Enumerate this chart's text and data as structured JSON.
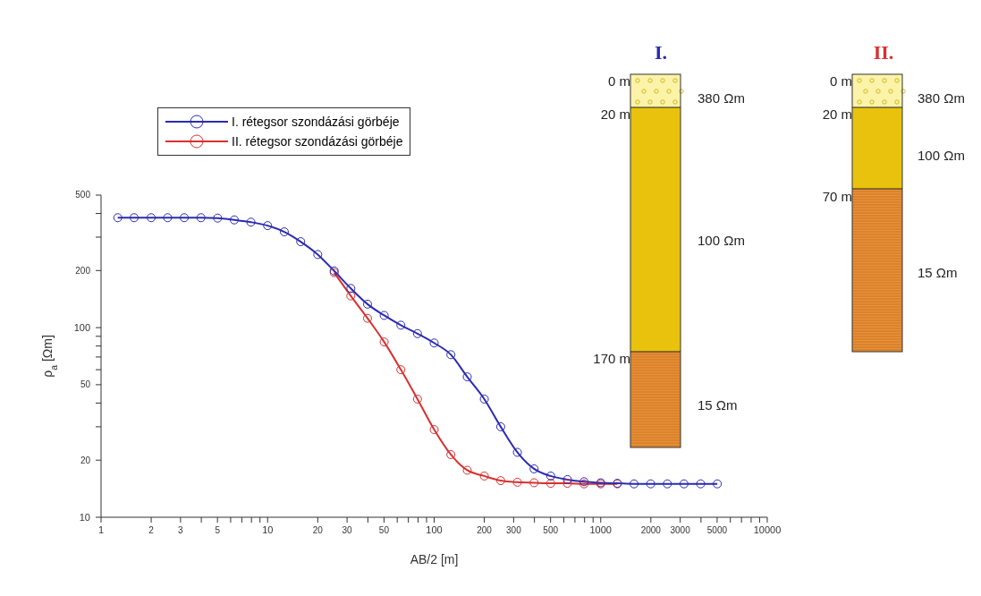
{
  "chart_data": {
    "type": "line",
    "xlabel": "AB/2 [m]",
    "ylabel": "ρ$_{a}$ [Ωm]",
    "log": "xy",
    "xlim": [
      1,
      10000
    ],
    "ylim": [
      10,
      500
    ],
    "xticks": [
      1,
      {
        "value": 2,
        "label": "2"
      },
      {
        "value": 3,
        "label": "3"
      },
      {
        "value": 4,
        "label": null
      },
      {
        "value": 5,
        "label": "5"
      },
      {
        "value": 6,
        "label": null
      },
      {
        "value": 7,
        "label": null
      },
      {
        "value": 8,
        "label": null
      },
      {
        "value": 9,
        "label": null
      },
      10,
      {
        "value": 20,
        "label": "20"
      },
      {
        "value": 30,
        "label": "30"
      },
      {
        "value": 40,
        "label": null
      },
      {
        "value": 50,
        "label": "50"
      },
      {
        "value": 60,
        "label": null
      },
      {
        "value": 70,
        "label": null
      },
      {
        "value": 80,
        "label": null
      },
      {
        "value": 90,
        "label": null
      },
      100,
      {
        "value": 200,
        "label": "200"
      },
      {
        "value": 300,
        "label": "300"
      },
      {
        "value": 400,
        "label": null
      },
      {
        "value": 500,
        "label": "500"
      },
      {
        "value": 600,
        "label": null
      },
      {
        "value": 700,
        "label": null
      },
      {
        "value": 800,
        "label": null
      },
      {
        "value": 900,
        "label": null
      },
      1000,
      {
        "value": 2000,
        "label": "2000"
      },
      {
        "value": 3000,
        "label": "3000"
      },
      {
        "value": 4000,
        "label": null
      },
      {
        "value": 5000,
        "label": "5000"
      },
      {
        "value": 6000,
        "label": null
      },
      {
        "value": 7000,
        "label": null
      },
      {
        "value": 8000,
        "label": null
      },
      {
        "value": 9000,
        "label": null
      },
      10000
    ],
    "yticks": [
      10,
      {
        "value": 20,
        "label": "20"
      },
      {
        "value": 30,
        "label": null
      },
      {
        "value": 40,
        "label": null
      },
      {
        "value": 50,
        "label": "50"
      },
      {
        "value": 60,
        "label": null
      },
      {
        "value": 70,
        "label": null
      },
      {
        "value": 80,
        "label": null
      },
      {
        "value": 90,
        "label": null
      },
      100,
      {
        "value": 200,
        "label": "200"
      },
      {
        "value": 300,
        "label": null
      },
      {
        "value": 400,
        "label": null
      },
      {
        "value": 500,
        "label": "500"
      }
    ],
    "legend": "top left",
    "marker": "circle",
    "line_style": "solid",
    "series": [
      {
        "name": "I. rétegsor szondázási görbéje",
        "color": "#2b2bb0",
        "x": [
          1.26,
          1.58,
          2,
          2.51,
          3.16,
          3.98,
          5.01,
          6.31,
          7.94,
          10,
          12.6,
          15.8,
          20,
          25.1,
          31.6,
          39.8,
          50.1,
          63.1,
          79.4,
          100,
          126,
          158,
          200,
          251,
          316,
          398,
          501,
          631,
          794,
          1000,
          1259,
          1585,
          1995,
          2512,
          3162,
          3981,
          5012
        ],
        "values": [
          380,
          380,
          380,
          380,
          380,
          380,
          378,
          370,
          360,
          345,
          320,
          284,
          243,
          199,
          161,
          133,
          116,
          103,
          93,
          83,
          72,
          55,
          42,
          30,
          22,
          18,
          16.5,
          15.8,
          15.4,
          15.2,
          15.1,
          15,
          15,
          15,
          15,
          15,
          15
        ]
      },
      {
        "name": "II. rétegsor szondázási görbéje",
        "color": "#d83030",
        "x": [
          25.1,
          31.6,
          39.8,
          50.1,
          63.1,
          79.4,
          100,
          126,
          158,
          200,
          251,
          316,
          398,
          501,
          631,
          794,
          1000,
          1259
        ],
        "values": [
          195,
          147,
          112,
          84,
          60,
          42,
          29,
          21.4,
          17.7,
          16.5,
          15.6,
          15.3,
          15.2,
          15.1,
          15.1,
          15,
          15,
          15
        ]
      }
    ],
    "annotations": [
      "I.",
      "0 m",
      "20 m",
      "170 m",
      "380 Ωm",
      "100 Ωm",
      "15 Ωm",
      "II.",
      "0 m",
      "20 m",
      "70 m",
      "380 Ωm",
      "100 Ωm",
      "15 Ωm"
    ]
  }
}
